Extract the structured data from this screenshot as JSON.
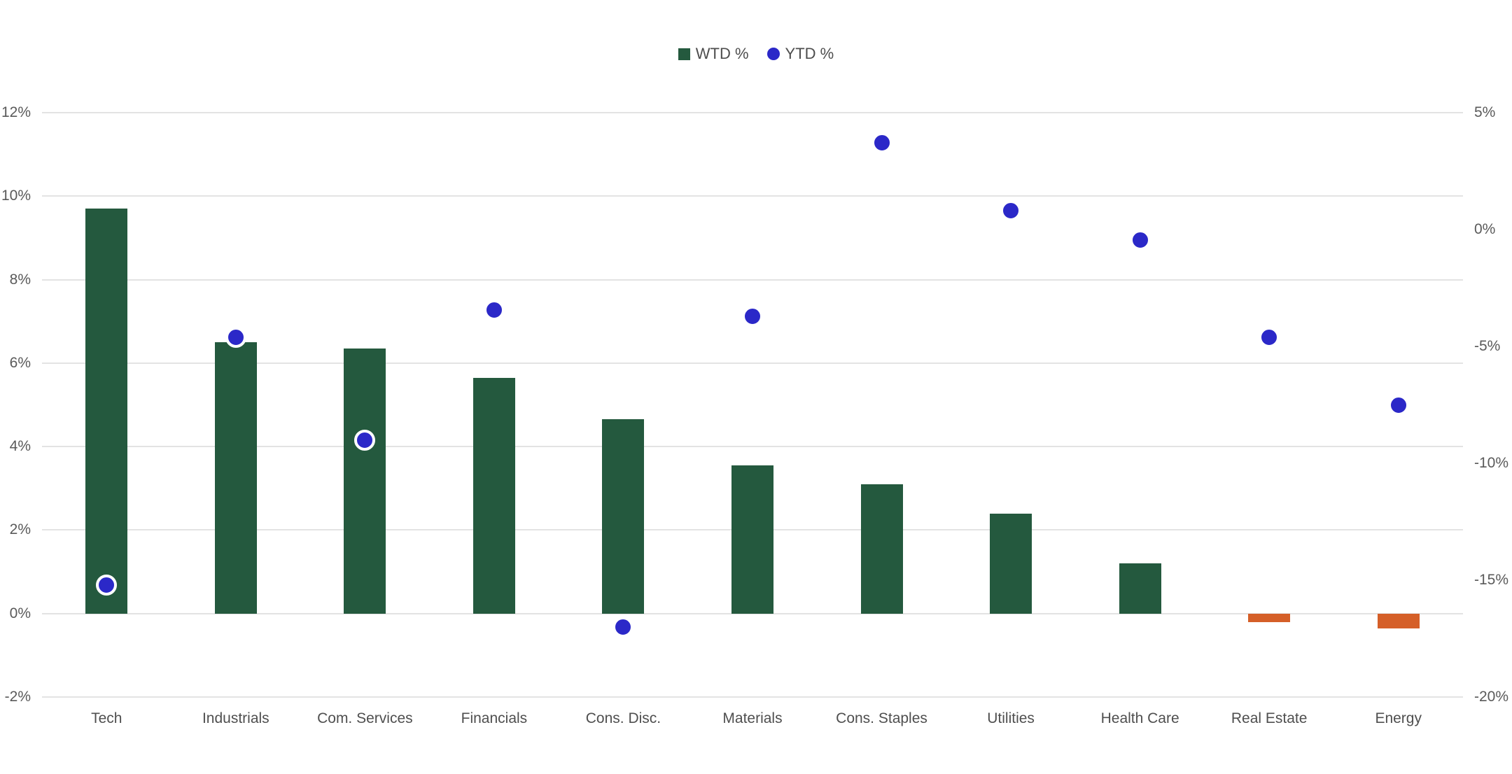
{
  "chart_data": {
    "type": "bar",
    "subtype": "dual-axis column + scatter",
    "title": "",
    "categories": [
      "Tech",
      "Industrials",
      "Com. Services",
      "Financials",
      "Cons. Disc.",
      "Materials",
      "Cons. Staples",
      "Utilities",
      "Health Care",
      "Real Estate",
      "Energy"
    ],
    "series": [
      {
        "name": "WTD %",
        "type": "column",
        "axis": "left",
        "color_positive": "#24593e",
        "color_negative": "#d55f28",
        "values": [
          9.7,
          6.5,
          6.35,
          5.65,
          4.65,
          3.55,
          3.1,
          2.4,
          1.2,
          -0.2,
          -0.35
        ]
      },
      {
        "name": "YTD %",
        "type": "scatter",
        "axis": "right",
        "color": "#2b28c8",
        "marker": "circle-white-ring",
        "values": [
          -15.2,
          -4.6,
          -9.0,
          -3.45,
          -17.0,
          -3.7,
          3.7,
          0.8,
          -0.45,
          -4.6,
          -7.5
        ]
      }
    ],
    "left_axis": {
      "min": -2,
      "max": 12,
      "tick_step": 2,
      "format": "percent",
      "ticks": [
        {
          "value": 12,
          "label": "12%"
        },
        {
          "value": 10,
          "label": "10%"
        },
        {
          "value": 8,
          "label": "8%"
        },
        {
          "value": 6,
          "label": "6%"
        },
        {
          "value": 4,
          "label": "4%"
        },
        {
          "value": 2,
          "label": "2%"
        },
        {
          "value": 0,
          "label": "0%"
        },
        {
          "value": -2,
          "label": "-2%"
        }
      ]
    },
    "right_axis": {
      "min": -20,
      "max": 5,
      "tick_step": 5,
      "format": "percent",
      "ticks": [
        {
          "value": 5,
          "label": "5%"
        },
        {
          "value": 0,
          "label": "0%"
        },
        {
          "value": -5,
          "label": "-5%"
        },
        {
          "value": -10,
          "label": "-10%"
        },
        {
          "value": -15,
          "label": "-15%"
        },
        {
          "value": -20,
          "label": "-20%"
        }
      ]
    },
    "grid": "horizontal-left-axis-only",
    "gridline_color": "#e3e3e3",
    "legend_position": "top-center",
    "background": "#ffffff"
  }
}
